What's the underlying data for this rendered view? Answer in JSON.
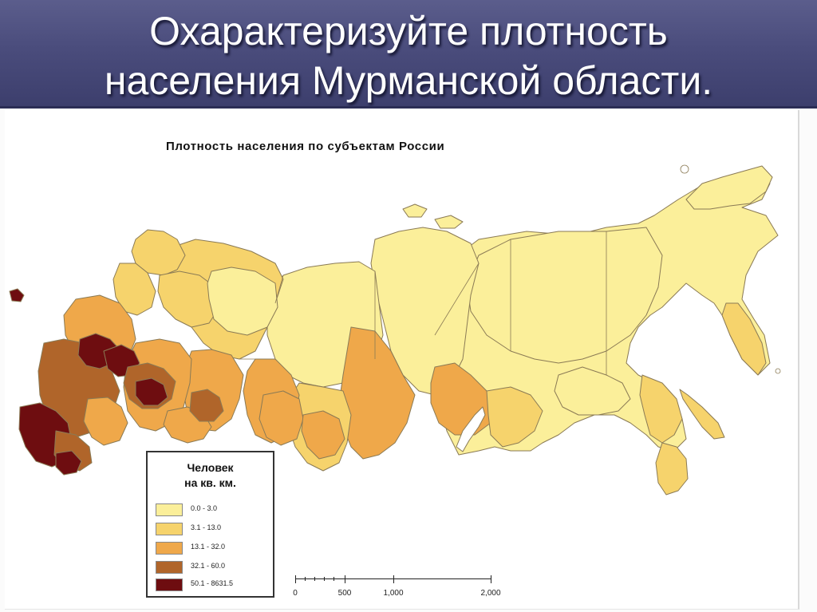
{
  "slide": {
    "title_line1": "Охарактеризуйте плотность",
    "title_line2": "населения Мурманской области."
  },
  "map": {
    "title": "Плотность населения по субъектам России",
    "legend": {
      "title_line1": "Человек",
      "title_line2": "на кв. км.",
      "classes": [
        {
          "label": "0.0 - 3.0",
          "color": "#fbef9a"
        },
        {
          "label": "3.1 - 13.0",
          "color": "#f6d36c"
        },
        {
          "label": "13.1 - 32.0",
          "color": "#efa84a"
        },
        {
          "label": "32.1 - 60.0",
          "color": "#b0652a"
        },
        {
          "label": "50.1 - 8631.5",
          "color": "#6e0d10"
        }
      ]
    },
    "scale_bar": {
      "labels": [
        "0",
        "500",
        "1,000",
        "2,000"
      ]
    },
    "colors": {
      "border": "#8a7a55",
      "water": "#ffffff"
    }
  }
}
